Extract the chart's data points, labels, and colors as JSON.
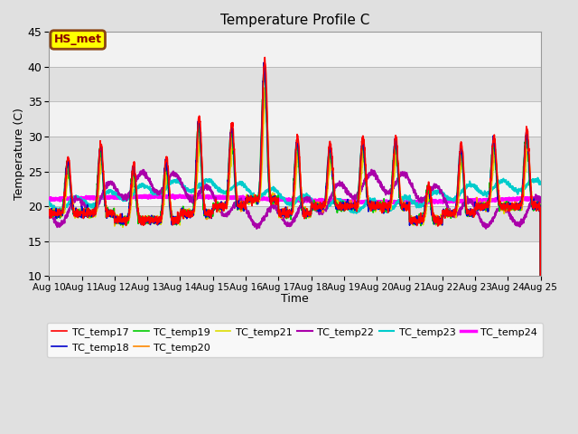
{
  "title": "Temperature Profile C",
  "xlabel": "Time",
  "ylabel": "Temperature (C)",
  "ylim": [
    10,
    45
  ],
  "yticks": [
    10,
    15,
    20,
    25,
    30,
    35,
    40,
    45
  ],
  "annotation_text": "HS_met",
  "annotation_color": "#8B0000",
  "annotation_bg": "#FFFF00",
  "annotation_border": "#8B4513",
  "series": {
    "TC_temp17": {
      "color": "#FF0000",
      "lw": 1.2
    },
    "TC_temp18": {
      "color": "#0000CC",
      "lw": 1.2
    },
    "TC_temp19": {
      "color": "#00CC00",
      "lw": 1.2
    },
    "TC_temp20": {
      "color": "#FF8800",
      "lw": 1.2
    },
    "TC_temp21": {
      "color": "#DDDD00",
      "lw": 1.2
    },
    "TC_temp22": {
      "color": "#AA00AA",
      "lw": 1.5
    },
    "TC_temp23": {
      "color": "#00CCCC",
      "lw": 1.5
    },
    "TC_temp24": {
      "color": "#FF00FF",
      "lw": 2.5
    }
  },
  "background_color": "#E0E0E0",
  "plot_bg_light": "#F2F2F2",
  "plot_bg_dark": "#E0E0E0",
  "grid_color": "#CCCCCC",
  "legend_cols": 6
}
